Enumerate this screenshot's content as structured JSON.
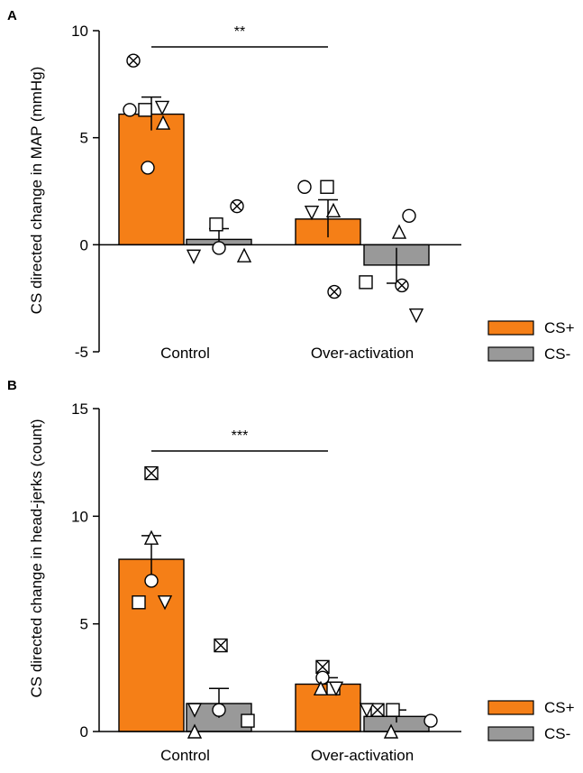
{
  "colors": {
    "cs_plus": "#F57F17",
    "cs_minus": "#999999",
    "stroke": "#000000"
  },
  "legend_labels": [
    "CS+",
    "CS-"
  ],
  "chart_data": [
    {
      "type": "bar",
      "panel_label": "A",
      "ylabel": "CS directed change in MAP (mmHg)",
      "xlabel": "",
      "categories": [
        "Control",
        "Over-activation"
      ],
      "ylim": [
        -5,
        10
      ],
      "yticks": [
        -5,
        0,
        5,
        10
      ],
      "grid": false,
      "legend_position": "right",
      "series": [
        {
          "name": "CS+",
          "values": [
            6.1,
            1.2
          ],
          "errors": [
            0.8,
            0.9
          ]
        },
        {
          "name": "CS-",
          "values": [
            0.25,
            -0.95
          ],
          "errors": [
            0.5,
            0.85
          ]
        }
      ],
      "points": [
        {
          "category": "Control",
          "series": "CS+",
          "values": [
            8.6,
            6.3,
            6.4,
            6.3,
            5.7,
            3.6
          ],
          "markers": [
            "circle-x",
            "square",
            "triangle-down",
            "circle",
            "triangle-up",
            "circle"
          ]
        },
        {
          "category": "Control",
          "series": "CS-",
          "values": [
            1.8,
            0.95,
            -0.55,
            -0.15,
            -0.5
          ],
          "markers": [
            "circle-x",
            "square",
            "triangle-down",
            "circle",
            "triangle-up"
          ]
        },
        {
          "category": "Over-activation",
          "series": "CS+",
          "values": [
            2.7,
            2.7,
            1.6,
            1.5,
            -2.2
          ],
          "markers": [
            "circle",
            "square",
            "triangle-up",
            "triangle-down",
            "circle-x"
          ]
        },
        {
          "category": "Over-activation",
          "series": "CS-",
          "values": [
            1.35,
            0.6,
            -1.75,
            -1.9,
            -3.3
          ],
          "markers": [
            "circle",
            "triangle-up",
            "square",
            "circle-x",
            "triangle-down"
          ]
        }
      ],
      "significance": {
        "from": "Control",
        "to": "Over-activation",
        "label": "**"
      }
    },
    {
      "type": "bar",
      "panel_label": "B",
      "ylabel": "CS directed change in head-jerks (count)",
      "xlabel": "",
      "categories": [
        "Control",
        "Over-activation"
      ],
      "ylim": [
        0,
        15
      ],
      "yticks": [
        0,
        5,
        10,
        15
      ],
      "grid": false,
      "legend_position": "right",
      "series": [
        {
          "name": "CS+",
          "values": [
            8.0,
            2.2
          ],
          "errors": [
            1.1,
            0.3
          ]
        },
        {
          "name": "CS-",
          "values": [
            1.3,
            0.7
          ],
          "errors": [
            0.7,
            0.3
          ]
        }
      ],
      "points": [
        {
          "category": "Control",
          "series": "CS+",
          "values": [
            12,
            9,
            7,
            6,
            6
          ],
          "markers": [
            "square-x",
            "triangle-up",
            "circle",
            "square",
            "triangle-down"
          ]
        },
        {
          "category": "Control",
          "series": "CS-",
          "values": [
            4,
            1,
            1,
            0.5,
            0
          ],
          "markers": [
            "square-x",
            "triangle-down",
            "circle",
            "square",
            "triangle-up"
          ]
        },
        {
          "category": "Over-activation",
          "series": "CS+",
          "values": [
            3,
            2,
            2.5,
            2,
            2
          ],
          "markers": [
            "square-x",
            "square",
            "circle",
            "triangle-up",
            "triangle-down"
          ]
        },
        {
          "category": "Over-activation",
          "series": "CS-",
          "values": [
            1,
            1,
            0,
            0.5,
            1
          ],
          "markers": [
            "square",
            "square-x",
            "triangle-up",
            "circle",
            "triangle-down"
          ]
        }
      ],
      "significance": {
        "from": "Control",
        "to": "Over-activation",
        "label": "***"
      }
    }
  ]
}
